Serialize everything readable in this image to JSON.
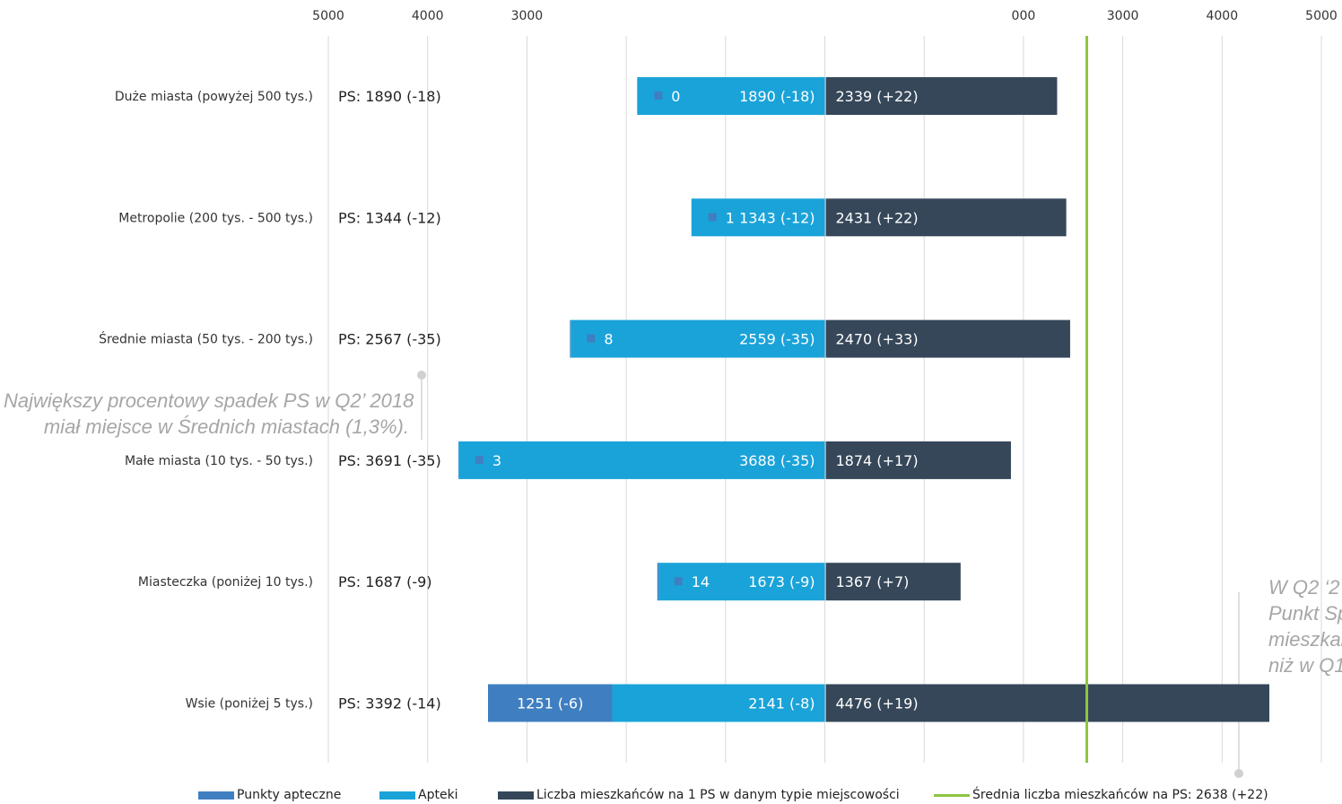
{
  "chart_data": {
    "type": "bar",
    "orientation": "horizontal",
    "left_axis_ticks": [
      "5000",
      "4000",
      "3000"
    ],
    "right_axis_ticks": [
      "000",
      "3000",
      "4000",
      "5000"
    ],
    "categories": [
      {
        "name": "Duże miasta (powyżej 500 tys.)",
        "ps_label": "PS: 1890 (-18)",
        "punkty": 0,
        "punkty_label": "0",
        "apteki": 1890,
        "apteki_label": "1890 (-18)",
        "mieszkancy": 2339,
        "mieszkancy_label": "2339 (+22)"
      },
      {
        "name": "Metropolie (200 tys. - 500 tys.)",
        "ps_label": "PS: 1344 (-12)",
        "punkty": 1,
        "punkty_label": "1",
        "apteki": 1343,
        "apteki_label": "1343 (-12)",
        "mieszkancy": 2431,
        "mieszkancy_label": "2431 (+22)"
      },
      {
        "name": "Średnie miasta (50 tys. - 200 tys.)",
        "ps_label": "PS: 2567 (-35)",
        "punkty": 8,
        "punkty_label": "8",
        "apteki": 2559,
        "apteki_label": "2559 (-35)",
        "mieszkancy": 2470,
        "mieszkancy_label": "2470 (+33)"
      },
      {
        "name": "Małe miasta (10 tys. - 50 tys.)",
        "ps_label": "PS: 3691 (-35)",
        "punkty": 3,
        "punkty_label": "3",
        "apteki": 3688,
        "apteki_label": "3688 (-35)",
        "mieszkancy": 1874,
        "mieszkancy_label": "1874 (+17)"
      },
      {
        "name": "Miasteczka (poniżej 10 tys.)",
        "ps_label": "PS: 1687 (-9)",
        "punkty": 14,
        "punkty_label": "14",
        "apteki": 1673,
        "apteki_label": "1673 (-9)",
        "mieszkancy": 1367,
        "mieszkancy_label": "1367 (+7)"
      },
      {
        "name": "Wsie (poniżej 5 tys.)",
        "ps_label": "PS: 3392 (-14)",
        "punkty": 1251,
        "punkty_label": "1251 (-6)",
        "apteki": 2141,
        "apteki_label": "2141 (-8)",
        "mieszkancy": 4476,
        "mieszkancy_label": "4476 (+19)"
      }
    ],
    "average": 2638,
    "series": [
      {
        "name": "Punkty apteczne",
        "color": "#3f7fc1"
      },
      {
        "name": "Apteki",
        "color": "#1aa3d9"
      },
      {
        "name": "Liczba mieszkańców na 1 PS w danym typie miejscowości",
        "color": "#354759"
      }
    ],
    "average_series": {
      "name": "Średnia liczba mieszkańców na PS: 2638 (+22)",
      "color": "#8dc63f"
    },
    "grid": true,
    "legend_position": "bottom"
  },
  "annotations": {
    "left": [
      "Największy procentowy spadek PS w Q2’ 2018",
      "miał miejsce w Średnich miastach (1,3%)."
    ],
    "right": [
      "W Q2 ‘2",
      "Punkt Sp",
      "mieszkan",
      "niż w Q1"
    ]
  }
}
